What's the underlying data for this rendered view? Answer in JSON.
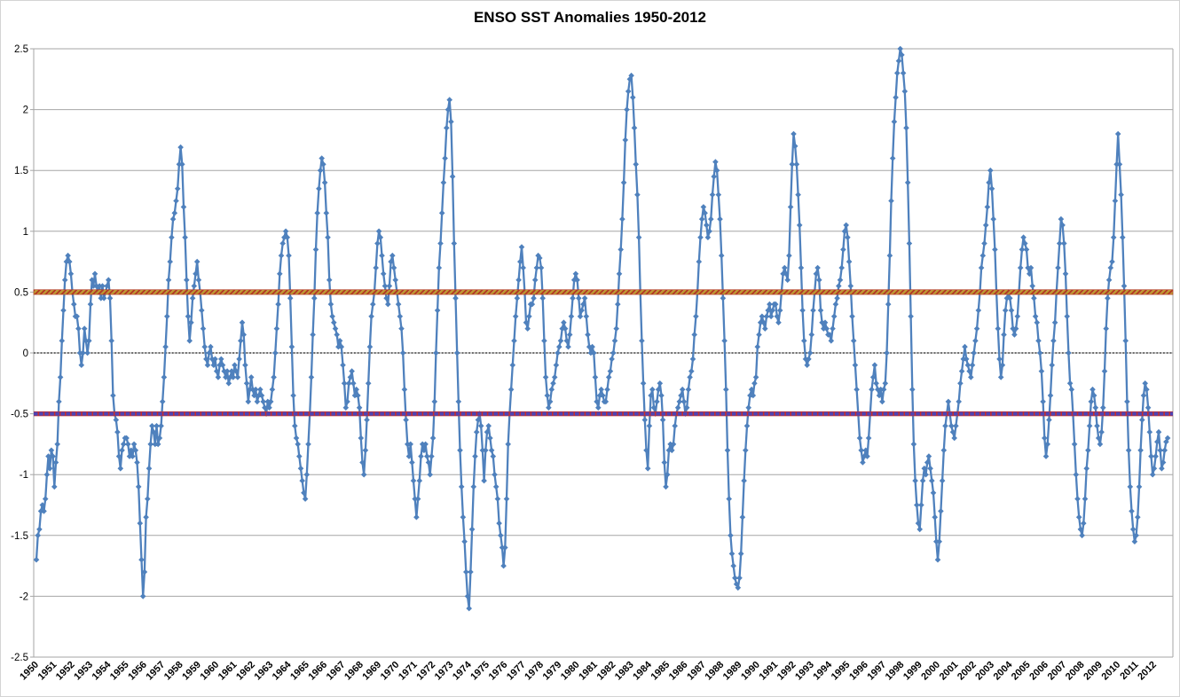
{
  "chart_data": {
    "type": "line",
    "title": "ENSO SST Anomalies 1950-2012",
    "xlabel": "",
    "ylabel": "",
    "ylim": [
      -2.5,
      2.5
    ],
    "y_ticks": [
      2.5,
      2,
      1.5,
      1,
      0.5,
      0,
      -0.5,
      -1,
      -1.5,
      -2,
      -2.5
    ],
    "y_tick_labels": [
      "2.5",
      "2",
      "1.5",
      "1",
      "0.5",
      "0",
      "-0.5",
      "-1",
      "-1.5",
      "-2",
      "-2.5"
    ],
    "x_tick_years": [
      "1950",
      "1951",
      "1952",
      "1953",
      "1954",
      "1955",
      "1956",
      "1957",
      "1958",
      "1959",
      "1960",
      "1961",
      "1962",
      "1963",
      "1964",
      "1965",
      "1966",
      "1967",
      "1968",
      "1969",
      "1970",
      "1971",
      "1972",
      "1973",
      "1974",
      "1975",
      "1976",
      "1977",
      "1978",
      "1979",
      "1980",
      "1981",
      "1982",
      "1983",
      "1984",
      "1985",
      "1986",
      "1987",
      "1988",
      "1989",
      "1990",
      "1991",
      "1992",
      "1993",
      "1994",
      "1995",
      "1996",
      "1997",
      "1998",
      "1999",
      "2000",
      "2001",
      "2002",
      "2003",
      "2004",
      "2005",
      "2006",
      "2007",
      "2008",
      "2009",
      "2010",
      "2011",
      "2012"
    ],
    "grid": "horizontal-only",
    "legend": "none",
    "series": [
      {
        "name": "Monthly SST anomaly",
        "color": "#4F81BD",
        "marker": "diamond",
        "start_month": "1950-01",
        "monthly_by_year": {
          "1950": [
            -1.7,
            -1.5,
            -1.45,
            -1.3,
            -1.25,
            -1.3,
            -1.2,
            -1.0,
            -0.85,
            -0.95,
            -0.8,
            -0.85
          ],
          "1951": [
            -1.1,
            -0.9,
            -0.75,
            -0.4,
            -0.2,
            0.1,
            0.35,
            0.6,
            0.75,
            0.8,
            0.75,
            0.65
          ],
          "1952": [
            0.5,
            0.4,
            0.3,
            0.3,
            0.2,
            0.0,
            -0.1,
            0.0,
            0.2,
            0.1,
            0.0,
            0.1
          ],
          "1953": [
            0.4,
            0.6,
            0.55,
            0.65,
            0.55,
            0.5,
            0.55,
            0.45,
            0.55,
            0.45,
            0.5,
            0.55
          ],
          "1954": [
            0.6,
            0.45,
            0.1,
            -0.35,
            -0.5,
            -0.55,
            -0.65,
            -0.85,
            -0.95,
            -0.8,
            -0.75,
            -0.7
          ],
          "1955": [
            -0.7,
            -0.75,
            -0.85,
            -0.8,
            -0.85,
            -0.75,
            -0.8,
            -0.9,
            -1.1,
            -1.4,
            -1.7,
            -2.0
          ],
          "1956": [
            -1.8,
            -1.35,
            -1.2,
            -0.95,
            -0.75,
            -0.6,
            -0.65,
            -0.75,
            -0.6,
            -0.75,
            -0.7,
            -0.6
          ],
          "1957": [
            -0.4,
            -0.2,
            0.05,
            0.3,
            0.6,
            0.75,
            0.95,
            1.1,
            1.15,
            1.25,
            1.35,
            1.55
          ],
          "1958": [
            1.69,
            1.55,
            1.2,
            0.95,
            0.6,
            0.3,
            0.1,
            0.25,
            0.45,
            0.55,
            0.65,
            0.75
          ],
          "1959": [
            0.6,
            0.5,
            0.35,
            0.2,
            0.05,
            -0.05,
            -0.1,
            0.0,
            0.05,
            -0.05,
            -0.1,
            -0.05
          ],
          "1960": [
            -0.15,
            -0.2,
            -0.1,
            -0.05,
            -0.1,
            -0.15,
            -0.2,
            -0.15,
            -0.25,
            -0.2,
            -0.15,
            -0.2
          ],
          "1961": [
            -0.1,
            -0.15,
            -0.2,
            -0.05,
            0.1,
            0.25,
            0.15,
            -0.1,
            -0.25,
            -0.4,
            -0.3,
            -0.2
          ],
          "1962": [
            -0.3,
            -0.35,
            -0.3,
            -0.4,
            -0.35,
            -0.3,
            -0.35,
            -0.4,
            -0.45,
            -0.5,
            -0.4,
            -0.45
          ],
          "1963": [
            -0.4,
            -0.3,
            -0.2,
            0.0,
            0.2,
            0.4,
            0.65,
            0.8,
            0.9,
            0.95,
            1.0,
            0.95
          ],
          "1964": [
            0.8,
            0.45,
            0.05,
            -0.35,
            -0.6,
            -0.7,
            -0.75,
            -0.85,
            -0.95,
            -1.05,
            -1.15,
            -1.2
          ],
          "1965": [
            -1.0,
            -0.75,
            -0.5,
            -0.2,
            0.15,
            0.45,
            0.85,
            1.15,
            1.35,
            1.5,
            1.6,
            1.55
          ],
          "1966": [
            1.4,
            1.15,
            0.95,
            0.6,
            0.4,
            0.3,
            0.25,
            0.2,
            0.15,
            0.05,
            0.1,
            0.05
          ],
          "1967": [
            -0.1,
            -0.25,
            -0.45,
            -0.4,
            -0.25,
            -0.2,
            -0.15,
            -0.25,
            -0.35,
            -0.3,
            -0.35,
            -0.45
          ],
          "1968": [
            -0.7,
            -0.9,
            -1.0,
            -0.8,
            -0.55,
            -0.25,
            0.05,
            0.3,
            0.4,
            0.5,
            0.7,
            0.9
          ],
          "1969": [
            1.0,
            0.95,
            0.8,
            0.65,
            0.55,
            0.45,
            0.4,
            0.55,
            0.75,
            0.8,
            0.7,
            0.6
          ],
          "1970": [
            0.5,
            0.4,
            0.3,
            0.2,
            0.0,
            -0.3,
            -0.55,
            -0.75,
            -0.85,
            -0.75,
            -0.9,
            -1.05
          ],
          "1971": [
            -1.2,
            -1.35,
            -1.2,
            -1.05,
            -0.85,
            -0.75,
            -0.8,
            -0.75,
            -0.85,
            -0.9,
            -1.0,
            -0.85
          ],
          "1972": [
            -0.7,
            -0.4,
            0.0,
            0.35,
            0.7,
            0.9,
            1.15,
            1.4,
            1.6,
            1.85,
            2.0,
            2.08
          ],
          "1973": [
            1.9,
            1.45,
            0.9,
            0.45,
            0.0,
            -0.4,
            -0.8,
            -1.1,
            -1.35,
            -1.55,
            -1.8,
            -2.0
          ],
          "1974": [
            -2.1,
            -1.8,
            -1.45,
            -1.1,
            -0.85,
            -0.65,
            -0.55,
            -0.5,
            -0.6,
            -0.8,
            -1.05,
            -0.8
          ],
          "1975": [
            -0.65,
            -0.6,
            -0.7,
            -0.8,
            -0.85,
            -1.0,
            -1.1,
            -1.2,
            -1.4,
            -1.5,
            -1.6,
            -1.75
          ],
          "1976": [
            -1.6,
            -1.2,
            -0.75,
            -0.5,
            -0.3,
            -0.1,
            0.1,
            0.3,
            0.45,
            0.6,
            0.75,
            0.87
          ],
          "1977": [
            0.7,
            0.5,
            0.25,
            0.2,
            0.3,
            0.4,
            0.4,
            0.45,
            0.6,
            0.7,
            0.8,
            0.78
          ],
          "1978": [
            0.7,
            0.45,
            0.1,
            -0.2,
            -0.35,
            -0.45,
            -0.4,
            -0.3,
            -0.25,
            -0.2,
            -0.1,
            0.0
          ],
          "1979": [
            0.05,
            0.1,
            0.2,
            0.25,
            0.2,
            0.1,
            0.05,
            0.15,
            0.3,
            0.45,
            0.6,
            0.65
          ],
          "1980": [
            0.6,
            0.45,
            0.3,
            0.35,
            0.4,
            0.45,
            0.3,
            0.15,
            0.05,
            0.0,
            0.05,
            0.0
          ],
          "1981": [
            -0.2,
            -0.4,
            -0.45,
            -0.35,
            -0.3,
            -0.35,
            -0.4,
            -0.4,
            -0.3,
            -0.2,
            -0.15,
            -0.05
          ],
          "1982": [
            0.0,
            0.1,
            0.2,
            0.4,
            0.65,
            0.85,
            1.1,
            1.4,
            1.75,
            2.0,
            2.15,
            2.25
          ],
          "1983": [
            2.28,
            2.1,
            1.85,
            1.55,
            1.3,
            0.95,
            0.5,
            0.1,
            -0.25,
            -0.55,
            -0.8,
            -0.95
          ],
          "1984": [
            -0.6,
            -0.35,
            -0.3,
            -0.45,
            -0.5,
            -0.4,
            -0.3,
            -0.25,
            -0.35,
            -0.55,
            -0.9,
            -1.1
          ],
          "1985": [
            -1.0,
            -0.8,
            -0.75,
            -0.8,
            -0.75,
            -0.6,
            -0.5,
            -0.45,
            -0.4,
            -0.35,
            -0.3,
            -0.4
          ],
          "1986": [
            -0.5,
            -0.45,
            -0.3,
            -0.2,
            -0.15,
            -0.05,
            0.15,
            0.3,
            0.5,
            0.75,
            0.95,
            1.1
          ],
          "1987": [
            1.2,
            1.15,
            1.05,
            0.95,
            1.0,
            1.1,
            1.3,
            1.45,
            1.57,
            1.5,
            1.3,
            1.1
          ],
          "1988": [
            0.8,
            0.45,
            0.1,
            -0.3,
            -0.8,
            -1.2,
            -1.5,
            -1.65,
            -1.75,
            -1.85,
            -1.9,
            -1.93
          ],
          "1989": [
            -1.85,
            -1.65,
            -1.35,
            -1.05,
            -0.8,
            -0.6,
            -0.45,
            -0.35,
            -0.3,
            -0.35,
            -0.25,
            -0.2
          ],
          "1990": [
            0.05,
            0.15,
            0.25,
            0.3,
            0.25,
            0.2,
            0.3,
            0.35,
            0.4,
            0.3,
            0.35,
            0.4
          ],
          "1991": [
            0.4,
            0.3,
            0.25,
            0.35,
            0.5,
            0.65,
            0.7,
            0.65,
            0.6,
            0.8,
            1.2,
            1.55
          ],
          "1992": [
            1.8,
            1.7,
            1.55,
            1.3,
            1.05,
            0.7,
            0.35,
            0.1,
            -0.05,
            -0.1,
            -0.05,
            0.0
          ],
          "1993": [
            0.15,
            0.35,
            0.5,
            0.65,
            0.7,
            0.6,
            0.35,
            0.25,
            0.2,
            0.25,
            0.2,
            0.15
          ],
          "1994": [
            0.15,
            0.1,
            0.2,
            0.3,
            0.4,
            0.45,
            0.55,
            0.6,
            0.7,
            0.85,
            1.0,
            1.05
          ],
          "1995": [
            0.95,
            0.75,
            0.55,
            0.3,
            0.1,
            -0.1,
            -0.3,
            -0.5,
            -0.7,
            -0.8,
            -0.9,
            -0.85
          ],
          "1996": [
            -0.8,
            -0.85,
            -0.7,
            -0.5,
            -0.3,
            -0.2,
            -0.1,
            -0.25,
            -0.3,
            -0.35,
            -0.3,
            -0.4
          ],
          "1997": [
            -0.3,
            -0.25,
            0.0,
            0.4,
            0.8,
            1.25,
            1.6,
            1.9,
            2.1,
            2.3,
            2.4,
            2.5
          ],
          "1998": [
            2.45,
            2.3,
            2.15,
            1.85,
            1.4,
            0.9,
            0.3,
            -0.3,
            -0.75,
            -1.05,
            -1.25,
            -1.4
          ],
          "1999": [
            -1.45,
            -1.25,
            -1.05,
            -0.95,
            -1.0,
            -0.9,
            -0.85,
            -0.95,
            -1.05,
            -1.15,
            -1.35,
            -1.55
          ],
          "2000": [
            -1.7,
            -1.55,
            -1.3,
            -1.05,
            -0.8,
            -0.6,
            -0.5,
            -0.4,
            -0.5,
            -0.6,
            -0.65,
            -0.7
          ],
          "2001": [
            -0.6,
            -0.5,
            -0.4,
            -0.25,
            -0.15,
            -0.05,
            0.05,
            -0.05,
            -0.1,
            -0.15,
            -0.2,
            -0.1
          ],
          "2002": [
            0.0,
            0.1,
            0.2,
            0.35,
            0.5,
            0.7,
            0.8,
            0.9,
            1.05,
            1.2,
            1.4,
            1.5
          ],
          "2003": [
            1.35,
            1.1,
            0.85,
            0.5,
            0.2,
            -0.05,
            -0.2,
            -0.1,
            0.15,
            0.35,
            0.45,
            0.5
          ],
          "2004": [
            0.45,
            0.35,
            0.2,
            0.15,
            0.2,
            0.3,
            0.5,
            0.7,
            0.85,
            0.95,
            0.9,
            0.85
          ],
          "2005": [
            0.7,
            0.65,
            0.7,
            0.55,
            0.45,
            0.3,
            0.25,
            0.1,
            0.0,
            -0.15,
            -0.4,
            -0.7
          ],
          "2006": [
            -0.85,
            -0.75,
            -0.55,
            -0.35,
            -0.1,
            0.1,
            0.25,
            0.5,
            0.7,
            0.9,
            1.1,
            1.05
          ],
          "2007": [
            0.9,
            0.65,
            0.3,
            0.0,
            -0.25,
            -0.3,
            -0.5,
            -0.75,
            -1.0,
            -1.2,
            -1.35,
            -1.45
          ],
          "2008": [
            -1.5,
            -1.4,
            -1.2,
            -0.95,
            -0.8,
            -0.6,
            -0.4,
            -0.3,
            -0.35,
            -0.45,
            -0.6,
            -0.7
          ],
          "2009": [
            -0.75,
            -0.65,
            -0.45,
            -0.15,
            0.2,
            0.45,
            0.6,
            0.7,
            0.75,
            0.95,
            1.25,
            1.55
          ],
          "2010": [
            1.8,
            1.55,
            1.3,
            0.95,
            0.55,
            0.1,
            -0.4,
            -0.8,
            -1.1,
            -1.3,
            -1.45,
            -1.55
          ],
          "2011": [
            -1.5,
            -1.35,
            -1.1,
            -0.8,
            -0.55,
            -0.35,
            -0.25,
            -0.3,
            -0.45,
            -0.65,
            -0.85,
            -1.0
          ],
          "2012": [
            -0.95,
            -0.85,
            -0.73,
            -0.65,
            -0.8,
            -0.95,
            -0.9,
            -0.8,
            -0.73,
            -0.7
          ]
        }
      }
    ],
    "reference_lines": [
      {
        "value": 0.5,
        "style": "thick-patterned",
        "colors": [
          "#B23A21",
          "#BF9B30"
        ]
      },
      {
        "value": -0.5,
        "style": "thick-dashed",
        "colors": [
          "#C32F2F",
          "#4D44B5"
        ]
      },
      {
        "value": 0,
        "style": "dotted",
        "colors": [
          "#595959"
        ]
      }
    ],
    "colors": {
      "axis": "#A6A6A6",
      "grid": "#A6A6A6",
      "background": "#FFFFFF",
      "border": "#D4D4D4",
      "text": "#000000"
    }
  }
}
